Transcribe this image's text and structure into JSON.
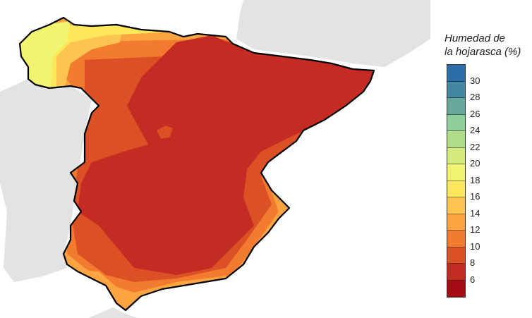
{
  "legend": {
    "title_line1": "Humedad de",
    "title_line2": "la hojarasca (%)",
    "ticks": [
      "30",
      "28",
      "26",
      "24",
      "22",
      "20",
      "18",
      "16",
      "14",
      "12",
      "10",
      "8",
      "6"
    ],
    "colors": [
      "#2c6fa8",
      "#4587a0",
      "#67a89a",
      "#8ecf9a",
      "#b1dc8a",
      "#d4ea7a",
      "#f0f46e",
      "#fde85a",
      "#fdc54f",
      "#fba441",
      "#f37b2f",
      "#dc5026",
      "#c42b22",
      "#a50a15"
    ]
  },
  "map": {
    "region": "Spain",
    "neighbor_land_color": "#e3e3e3",
    "outline_color": "#000000"
  }
}
